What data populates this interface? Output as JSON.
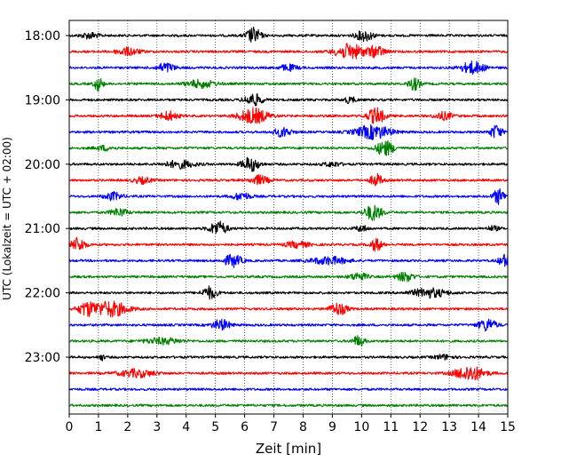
{
  "chart_data": {
    "type": "line",
    "title": "",
    "xlabel": "Zeit  [min]",
    "ylabel": "UTC (Lokalzeit = UTC + 02:00)",
    "xlim": [
      0,
      15
    ],
    "x_ticks": [
      "0",
      "1",
      "2",
      "3",
      "4",
      "5",
      "6",
      "7",
      "8",
      "9",
      "10",
      "11",
      "12",
      "13",
      "14",
      "15"
    ],
    "y_tick_labels": [
      "18:00",
      "19:00",
      "20:00",
      "21:00",
      "22:00",
      "23:00"
    ],
    "grid": "vertical dotted",
    "trace_interval_minutes": 15,
    "trace_count": 24,
    "trace_colors": [
      "#000000",
      "#ff0000",
      "#0000ff",
      "#008000"
    ],
    "series": [
      {
        "start": "18:00",
        "color": "#000000",
        "bursts": [
          [
            0.7,
            0.3,
            0.4
          ],
          [
            6.3,
            0.25,
            1.0
          ],
          [
            10.1,
            0.3,
            0.7
          ]
        ]
      },
      {
        "start": "18:15",
        "color": "#ff0000",
        "bursts": [
          [
            2.0,
            0.4,
            0.5
          ],
          [
            9.6,
            0.5,
            1.0
          ],
          [
            10.5,
            0.3,
            0.7
          ]
        ]
      },
      {
        "start": "18:30",
        "color": "#0000ff",
        "bursts": [
          [
            3.3,
            0.3,
            0.6
          ],
          [
            7.5,
            0.3,
            0.4
          ],
          [
            13.8,
            0.4,
            0.8
          ]
        ]
      },
      {
        "start": "18:45",
        "color": "#008000",
        "bursts": [
          [
            1.0,
            0.15,
            0.9
          ],
          [
            4.5,
            0.5,
            0.5
          ],
          [
            11.8,
            0.2,
            0.8
          ]
        ]
      },
      {
        "start": "19:00",
        "color": "#000000",
        "bursts": [
          [
            6.3,
            0.3,
            0.8
          ],
          [
            9.6,
            0.2,
            0.4
          ]
        ]
      },
      {
        "start": "19:15",
        "color": "#ff0000",
        "bursts": [
          [
            3.4,
            0.3,
            0.6
          ],
          [
            6.3,
            0.5,
            1.0
          ],
          [
            10.5,
            0.3,
            1.0
          ],
          [
            12.8,
            0.3,
            0.5
          ]
        ]
      },
      {
        "start": "19:30",
        "color": "#0000ff",
        "bursts": [
          [
            7.3,
            0.3,
            0.6
          ],
          [
            10.4,
            0.6,
            0.9
          ],
          [
            14.6,
            0.2,
            0.9
          ]
        ]
      },
      {
        "start": "19:45",
        "color": "#008000",
        "bursts": [
          [
            10.8,
            0.3,
            1.0
          ],
          [
            1.2,
            0.3,
            0.3
          ]
        ]
      },
      {
        "start": "20:00",
        "color": "#000000",
        "bursts": [
          [
            3.8,
            0.5,
            0.5
          ],
          [
            6.2,
            0.3,
            0.9
          ],
          [
            9.0,
            0.3,
            0.3
          ]
        ]
      },
      {
        "start": "20:15",
        "color": "#ff0000",
        "bursts": [
          [
            2.5,
            0.3,
            0.4
          ],
          [
            6.5,
            0.3,
            0.6
          ],
          [
            10.5,
            0.2,
            0.8
          ]
        ]
      },
      {
        "start": "20:30",
        "color": "#0000ff",
        "bursts": [
          [
            1.5,
            0.3,
            0.5
          ],
          [
            5.9,
            0.3,
            0.5
          ],
          [
            14.7,
            0.2,
            1.0
          ]
        ]
      },
      {
        "start": "20:45",
        "color": "#008000",
        "bursts": [
          [
            1.7,
            0.3,
            0.5
          ],
          [
            10.4,
            0.3,
            1.0
          ]
        ]
      },
      {
        "start": "21:00",
        "color": "#000000",
        "bursts": [
          [
            5.1,
            0.3,
            0.9
          ],
          [
            10.0,
            0.2,
            0.4
          ],
          [
            14.5,
            0.2,
            0.3
          ]
        ]
      },
      {
        "start": "21:15",
        "color": "#ff0000",
        "bursts": [
          [
            0.3,
            0.25,
            0.9
          ],
          [
            7.8,
            0.4,
            0.4
          ],
          [
            10.5,
            0.2,
            0.8
          ]
        ]
      },
      {
        "start": "21:30",
        "color": "#0000ff",
        "bursts": [
          [
            5.6,
            0.3,
            0.8
          ],
          [
            8.9,
            0.6,
            0.5
          ],
          [
            14.9,
            0.2,
            0.8
          ]
        ]
      },
      {
        "start": "21:45",
        "color": "#008000",
        "bursts": [
          [
            9.9,
            0.3,
            0.5
          ],
          [
            11.5,
            0.3,
            0.6
          ]
        ]
      },
      {
        "start": "22:00",
        "color": "#000000",
        "bursts": [
          [
            4.8,
            0.25,
            0.8
          ],
          [
            12.3,
            0.6,
            0.6
          ]
        ]
      },
      {
        "start": "22:15",
        "color": "#ff0000",
        "bursts": [
          [
            0.6,
            0.3,
            0.8
          ],
          [
            1.4,
            0.6,
            1.0
          ],
          [
            9.2,
            0.3,
            0.8
          ]
        ]
      },
      {
        "start": "22:30",
        "color": "#0000ff",
        "bursts": [
          [
            5.2,
            0.3,
            0.7
          ],
          [
            14.3,
            0.3,
            0.8
          ]
        ]
      },
      {
        "start": "22:45",
        "color": "#008000",
        "bursts": [
          [
            3.2,
            0.6,
            0.4
          ],
          [
            9.9,
            0.2,
            0.7
          ]
        ]
      },
      {
        "start": "23:00",
        "color": "#000000",
        "bursts": [
          [
            1.1,
            0.1,
            0.4
          ],
          [
            12.8,
            0.3,
            0.3
          ]
        ]
      },
      {
        "start": "23:15",
        "color": "#ff0000",
        "bursts": [
          [
            2.3,
            0.6,
            0.5
          ],
          [
            13.7,
            0.5,
            1.0
          ]
        ]
      },
      {
        "start": "23:30",
        "color": "#0000ff",
        "bursts": []
      },
      {
        "start": "23:45",
        "color": "#008000",
        "bursts": []
      }
    ]
  }
}
